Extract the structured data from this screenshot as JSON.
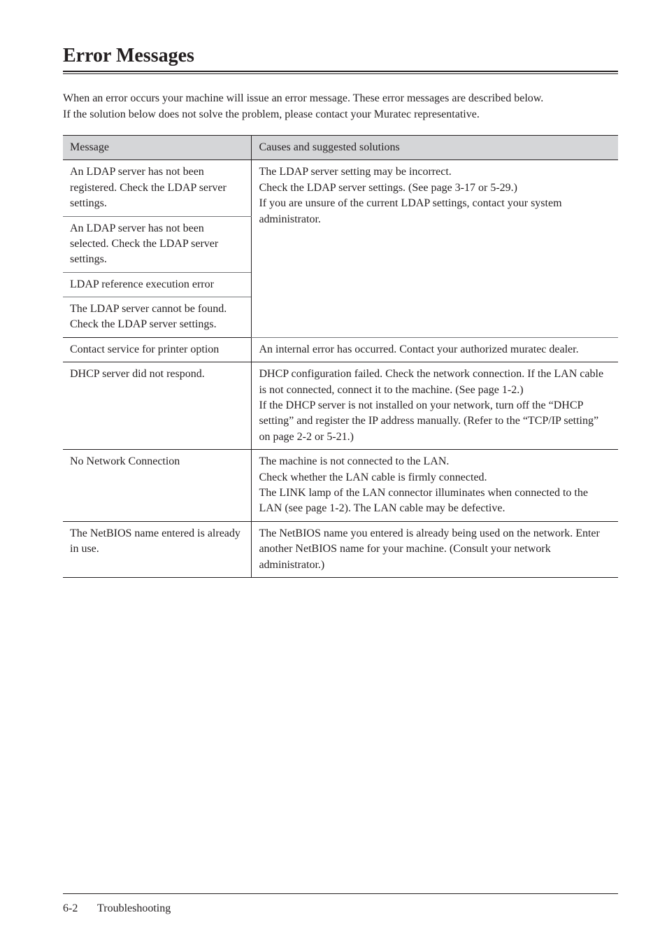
{
  "heading": "Error Messages",
  "intro_para1": "When an error occurs your machine will issue an error message. These error messages are described below.",
  "intro_para2": "If the solution below does not solve the problem, please contact your Muratec representative.",
  "table": {
    "headers": {
      "message": "Message",
      "solution": "Causes and suggested solutions"
    },
    "group1_sol": "The LDAP server setting may be incorrect.\nCheck the LDAP server settings. (See page 3-17 or 5-29.)\nIf you are unsure of the current LDAP settings, contact your system administrator.",
    "group1_r1": "An LDAP server has not been registered. Check the LDAP server settings.",
    "group1_r2": "An LDAP server has not been selected. Check the LDAP server settings.",
    "group1_r3": "LDAP reference execution error",
    "group1_r4": "The LDAP server cannot be found. Check the LDAP server settings.",
    "r5_msg": "Contact service for printer option",
    "r5_sol": "An internal error has occurred. Contact your authorized muratec dealer.",
    "r6_msg": "DHCP server did not respond.",
    "r6_sol": "DHCP configuration failed. Check the network connection. If the LAN cable is not connected, connect it to the machine. (See page 1-2.)\nIf the DHCP server is not installed on your network, turn off the “DHCP setting” and register the IP address manually. (Refer to the “TCP/IP setting” on page 2-2 or 5-21.)",
    "r7_msg": "No Network Connection",
    "r7_sol": "The machine is not connected to the LAN.\nCheck whether the LAN cable is firmly connected.\nThe LINK lamp of the LAN connector illuminates when connected to the LAN (see page 1-2). The LAN cable may be defective.",
    "r8_msg": "The NetBIOS name entered is already in use.",
    "r8_sol": "The NetBIOS name you entered is already being used on the network. Enter another NetBIOS name for your machine. (Consult your network administrator.)"
  },
  "footer": {
    "page": "6-2",
    "section": "Troubleshooting"
  }
}
